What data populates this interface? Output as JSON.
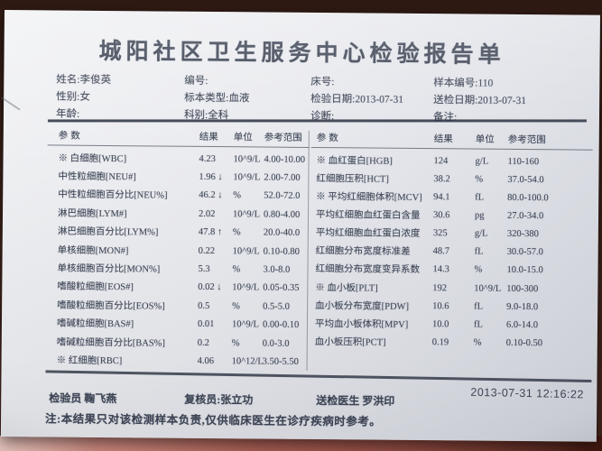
{
  "colors": {
    "paper": "#eaebef",
    "ink": "#3f4656",
    "backdrop": "#3e241c",
    "table_surface": "#a85e54"
  },
  "report": {
    "title": "城阳社区卫生服务中心检验报告单",
    "meta": [
      [
        "姓名:李俊英",
        "编号:",
        "床号:",
        "样本编号:110"
      ],
      [
        "性别:女",
        "标本类型:血液",
        "检验日期:2013-07-31",
        "送检日期:2013-07-31"
      ],
      [
        "年龄:",
        "科别:全科",
        "诊断:",
        "备注:"
      ]
    ],
    "columns": [
      "参数",
      "结果",
      "单位",
      "参考范围"
    ],
    "left_table": {
      "rows": [
        {
          "name": "※ 白细胞[WBC]",
          "result": "4.23",
          "unit": "10^9/L",
          "range": "4.00-10.00"
        },
        {
          "name": "中性粒细胞[NEU#]",
          "result": "1.96 ↓",
          "unit": "10^9/L",
          "range": "2.00-7.00"
        },
        {
          "name": "中性粒细胞百分比[NEU%]",
          "result": "46.2 ↓",
          "unit": "%",
          "range": "52.0-72.0"
        },
        {
          "name": "淋巴细胞[LYM#]",
          "result": "2.02",
          "unit": "10^9/L",
          "range": "0.80-4.00"
        },
        {
          "name": "淋巴细胞百分比[LYM%]",
          "result": "47.8 ↑",
          "unit": "%",
          "range": "20.0-40.0"
        },
        {
          "name": "单核细胞[MON#]",
          "result": "0.22",
          "unit": "10^9/L",
          "range": "0.10-0.80"
        },
        {
          "name": "单核细胞百分比[MON%]",
          "result": "5.3",
          "unit": "%",
          "range": "3.0-8.0"
        },
        {
          "name": "嗜酸粒细胞[EOS#]",
          "result": "0.02 ↓",
          "unit": "10^9/L",
          "range": "0.05-0.35"
        },
        {
          "name": "嗜酸粒细胞百分比[EOS%]",
          "result": "0.5",
          "unit": "%",
          "range": "0.5-5.0"
        },
        {
          "name": "嗜碱粒细胞[BAS#]",
          "result": "0.01",
          "unit": "10^9/L",
          "range": "0.00-0.10"
        },
        {
          "name": "嗜碱粒细胞百分比[BAS%]",
          "result": "0.2",
          "unit": "%",
          "range": "0.0-3.0"
        },
        {
          "name": "※ 红细胞[RBC]",
          "result": "4.06",
          "unit": "10^12/L",
          "range": "3.50-5.50"
        }
      ]
    },
    "right_table": {
      "rows": [
        {
          "name": "※ 血红蛋白[HGB]",
          "result": "124",
          "unit": "g/L",
          "range": "110-160"
        },
        {
          "name": "红细胞压积[HCT]",
          "result": "38.2",
          "unit": "%",
          "range": "37.0-54.0"
        },
        {
          "name": "※ 平均红细胞体积[MCV]",
          "result": "94.1",
          "unit": "fL",
          "range": "80.0-100.0"
        },
        {
          "name": "平均红细胞血红蛋白含量",
          "result": "30.6",
          "unit": "pg",
          "range": "27.0-34.0"
        },
        {
          "name": "平均红细胞血红蛋白浓度",
          "result": "325",
          "unit": "g/L",
          "range": "320-380"
        },
        {
          "name": "红细胞分布宽度标准差",
          "result": "48.7",
          "unit": "fL",
          "range": "30.0-57.0"
        },
        {
          "name": "红细胞分布宽度变异系数",
          "result": "14.3",
          "unit": "%",
          "range": "10.0-15.0"
        },
        {
          "name": "※ 血小板[PLT]",
          "result": "192",
          "unit": "10^9/L",
          "range": "100-300"
        },
        {
          "name": "血小板分布宽度[PDW]",
          "result": "10.6",
          "unit": "fL",
          "range": "9.0-18.0"
        },
        {
          "name": "平均血小板体积[MPV]",
          "result": "10.0",
          "unit": "fL",
          "range": "6.0-14.0"
        },
        {
          "name": "血小板压积[PCT]",
          "result": "0.19",
          "unit": "%",
          "range": "0.10-0.50"
        }
      ]
    },
    "footer": {
      "tester": "检验员 鞠飞燕",
      "reviewer": "复核员:张立功",
      "doctor": "送检医生 罗洪印",
      "timestamp": "2013-07-31 12:16:22",
      "note": "注:本结果只对该检测样本负责,仅供临床医生在诊疗疾病时参考。"
    }
  }
}
